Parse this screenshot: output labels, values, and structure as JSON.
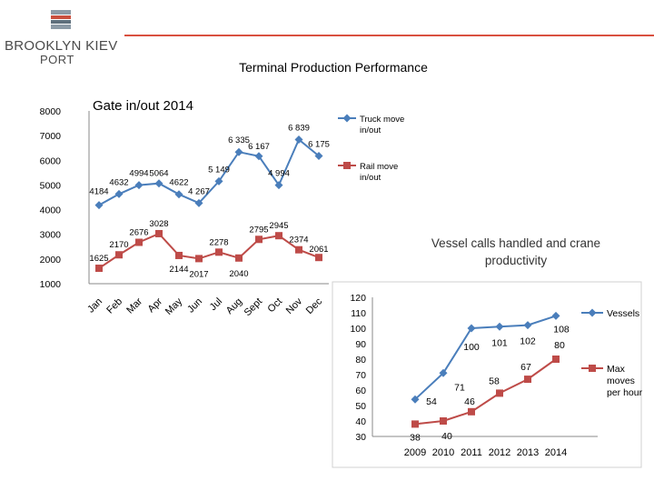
{
  "header": {
    "logo_line1": "BROOKLYN KIEV",
    "logo_line2": "PORT",
    "title": "Terminal Production Performance",
    "accent_color": "#d9503f"
  },
  "chart_data": [
    {
      "type": "line",
      "title": "Gate in/out 2014",
      "categories": [
        "Jan",
        "Feb",
        "Mar",
        "Apr",
        "May",
        "Jun",
        "Jul",
        "Aug",
        "Sept",
        "Oct",
        "Nov",
        "Dec"
      ],
      "yticks": [
        "8000",
        "7000",
        "6000",
        "5000",
        "4000",
        "3000",
        "2000",
        "1000"
      ],
      "ylim": [
        1000,
        8000
      ],
      "legend_position": "top-right",
      "series": [
        {
          "name": "Truck move in/out",
          "color": "#4a7ebb",
          "marker": "diamond",
          "values": [
            4184,
            4632,
            4994,
            5064,
            4622,
            4267,
            5149,
            6335,
            6167,
            4994,
            6839,
            6175
          ],
          "labels": [
            "4184",
            "4632",
            "4994",
            "5064",
            "4622",
            "4 267",
            "5 149",
            "6 335",
            "6 167",
            "4 994",
            "6 839",
            "6 175"
          ]
        },
        {
          "name": "Rail move in/out",
          "color": "#be4b48",
          "marker": "square",
          "values": [
            1625,
            2170,
            2676,
            3028,
            2144,
            2017,
            2278,
            2040,
            2795,
            2945,
            2374,
            2061
          ],
          "labels": [
            "1625",
            "2170",
            "2676",
            "3028",
            "2144",
            "2017",
            "2278",
            "2040",
            "2795",
            "2945",
            "2374",
            "2061"
          ]
        }
      ]
    },
    {
      "type": "line",
      "title": "Vessel calls handled and crane productivity",
      "categories": [
        "2009",
        "2010",
        "2011",
        "2012",
        "2013",
        "2014"
      ],
      "yticks": [
        "120",
        "110",
        "100",
        "90",
        "80",
        "70",
        "60",
        "50",
        "40",
        "30"
      ],
      "ylim": [
        30,
        120
      ],
      "legend_position": "right",
      "series": [
        {
          "name": "Vessels",
          "color": "#4a7ebb",
          "marker": "diamond",
          "values": [
            54,
            71,
            100,
            101,
            102,
            108
          ],
          "labels": [
            "54",
            "71",
            "100",
            "101",
            "102",
            "108"
          ]
        },
        {
          "name": "Max moves per hour",
          "color": "#be4b48",
          "marker": "square",
          "values": [
            38,
            40,
            46,
            58,
            67,
            80
          ],
          "labels": [
            "38",
            "40",
            "46",
            "58",
            "67",
            "80"
          ]
        }
      ]
    }
  ]
}
